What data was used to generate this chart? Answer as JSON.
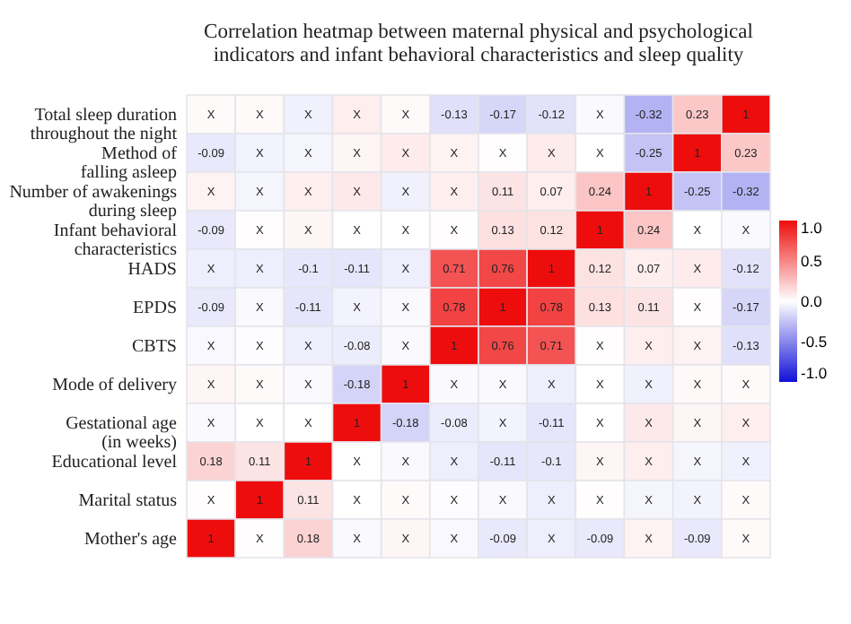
{
  "chart_data": {
    "type": "heatmap",
    "title": "Correlation heatmap between maternal physical and psychological indicators and infant behavioral characteristics and sleep quality",
    "categories": [
      null,
      null,
      null,
      null,
      null,
      null,
      null,
      null,
      null,
      null,
      null,
      null
    ],
    "y_categories": [
      "Total sleep duration throughout the night",
      "Method of falling asleep",
      "Number of awakenings during sleep",
      "Infant behavioral characteristics",
      "HADS",
      "EPDS",
      "CBTS",
      "Mode of delivery",
      "Gestational age (in weeks)",
      "Educational level",
      "Marital status",
      "Mother's age"
    ],
    "cells": [
      [
        0.02,
        0.02,
        -0.06,
        0.07,
        0.02,
        -0.13,
        -0.17,
        -0.12,
        -0.02,
        -0.32,
        0.23,
        1
      ],
      [
        -0.09,
        -0.05,
        -0.04,
        0.04,
        0.08,
        0.05,
        0.01,
        0.08,
        0,
        -0.25,
        1,
        0.23
      ],
      [
        0.05,
        -0.04,
        0.07,
        0.09,
        -0.06,
        0.07,
        0.11,
        0.07,
        0.24,
        1,
        -0.25,
        -0.32
      ],
      [
        -0.09,
        0.01,
        0.04,
        0,
        0,
        0.01,
        0.13,
        0.12,
        1,
        0.24,
        0,
        -0.02
      ],
      [
        -0.07,
        -0.07,
        -0.1,
        -0.11,
        -0.07,
        0.71,
        0.76,
        1,
        0.12,
        0.07,
        0.08,
        -0.12
      ],
      [
        -0.09,
        -0.02,
        -0.11,
        -0.05,
        -0.02,
        0.78,
        1,
        0.78,
        0.13,
        0.11,
        0.01,
        -0.17
      ],
      [
        -0.03,
        -0.01,
        -0.07,
        -0.08,
        -0.02,
        1,
        0.76,
        0.71,
        0.01,
        0.07,
        0.05,
        -0.13
      ],
      [
        0.04,
        0.02,
        -0.02,
        -0.18,
        1,
        -0.02,
        -0.02,
        -0.07,
        0,
        -0.06,
        0.03,
        0.02
      ],
      [
        -0.02,
        0,
        0,
        1,
        -0.18,
        -0.08,
        -0.05,
        -0.11,
        0,
        0.09,
        0.04,
        0.07
      ],
      [
        0.18,
        0.11,
        1,
        0,
        -0.02,
        -0.07,
        -0.11,
        -0.1,
        0.04,
        0.07,
        -0.04,
        -0.06
      ],
      [
        0.01,
        1,
        0.11,
        0,
        0.02,
        -0.01,
        -0.02,
        -0.07,
        0.01,
        -0.04,
        -0.05,
        0.02
      ],
      [
        1,
        0.01,
        0.18,
        -0.02,
        0.04,
        -0.03,
        -0.09,
        -0.07,
        -0.09,
        0.05,
        -0.09,
        0.02
      ]
    ],
    "cell_labels": [
      [
        "X",
        "X",
        "X",
        "X",
        "X",
        "-0.13",
        "-0.17",
        "-0.12",
        "X",
        "-0.32",
        "0.23",
        "1"
      ],
      [
        "-0.09",
        "X",
        "X",
        "X",
        "X",
        "X",
        "X",
        "X",
        "X",
        "-0.25",
        "1",
        "0.23"
      ],
      [
        "X",
        "X",
        "X",
        "X",
        "X",
        "X",
        "0.11",
        "0.07",
        "0.24",
        "1",
        "-0.25",
        "-0.32"
      ],
      [
        "-0.09",
        "X",
        "X",
        "X",
        "X",
        "X",
        "0.13",
        "0.12",
        "1",
        "0.24",
        "X",
        "X"
      ],
      [
        "X",
        "X",
        "-0.1",
        "-0.11",
        "X",
        "0.71",
        "0.76",
        "1",
        "0.12",
        "0.07",
        "X",
        "-0.12"
      ],
      [
        "-0.09",
        "X",
        "-0.11",
        "X",
        "X",
        "0.78",
        "1",
        "0.78",
        "0.13",
        "0.11",
        "X",
        "-0.17"
      ],
      [
        "X",
        "X",
        "X",
        "-0.08",
        "X",
        "1",
        "0.76",
        "0.71",
        "X",
        "X",
        "X",
        "-0.13"
      ],
      [
        "X",
        "X",
        "X",
        "-0.18",
        "1",
        "X",
        "X",
        "X",
        "X",
        "X",
        "X",
        "X"
      ],
      [
        "X",
        "X",
        "X",
        "1",
        "-0.18",
        "-0.08",
        "X",
        "-0.11",
        "X",
        "X",
        "X",
        "X"
      ],
      [
        "0.18",
        "0.11",
        "1",
        "X",
        "X",
        "X",
        "-0.11",
        "-0.1",
        "X",
        "X",
        "X",
        "X"
      ],
      [
        "X",
        "1",
        "0.11",
        "X",
        "X",
        "X",
        "X",
        "X",
        "X",
        "X",
        "X",
        "X"
      ],
      [
        "1",
        "X",
        "0.18",
        "X",
        "X",
        "X",
        "-0.09",
        "X",
        "-0.09",
        "X",
        "-0.09",
        "X"
      ]
    ],
    "clim": [
      -1,
      1
    ],
    "cticks": [
      {
        "value": 1,
        "label": "1.0"
      },
      {
        "value": 0.5,
        "label": "0.5"
      },
      {
        "value": 0,
        "label": "0.0"
      },
      {
        "value": -0.5,
        "label": "-0.5"
      },
      {
        "value": -1,
        "label": "-1.0"
      }
    ]
  }
}
